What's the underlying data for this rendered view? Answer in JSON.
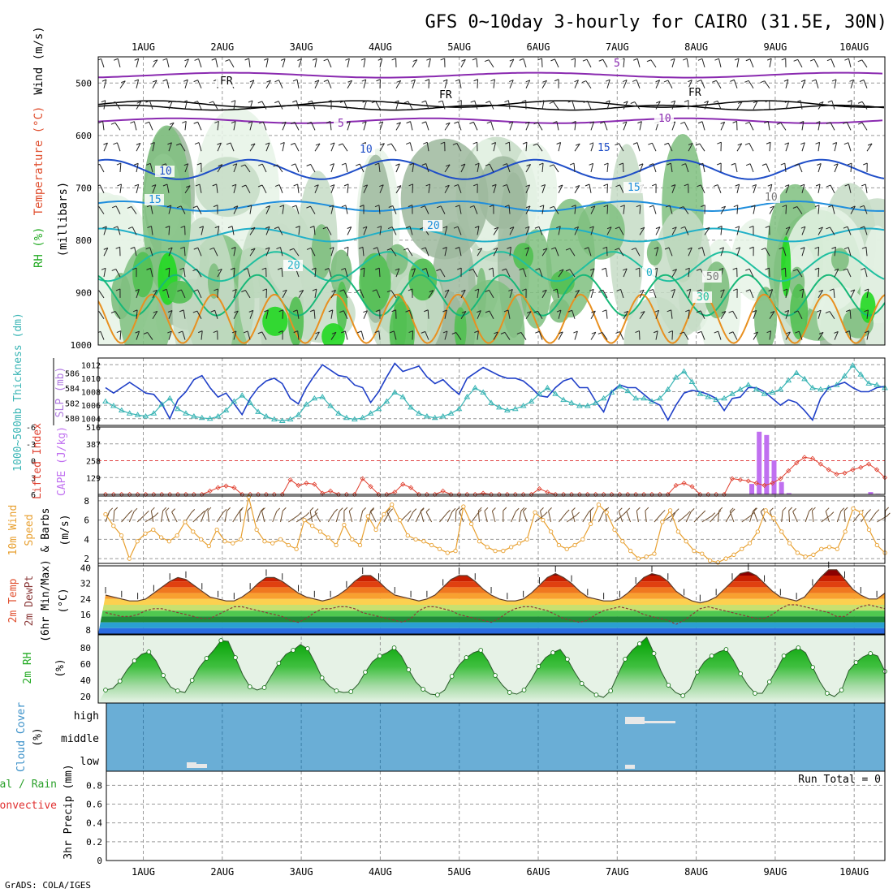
{
  "title": "GFS 0~10day 3-hourly for CAIRO (31.5E, 30N)",
  "credit": "GrADS: COLA/IGES",
  "colors": {
    "thickness": "#3ab5b5",
    "slp": "#2040c8",
    "lifted": "#e04030",
    "cape": "#c070f0",
    "wind": "#e8a030",
    "rh2m": "#22aa22",
    "cloud_bg": "#6aaed6",
    "cloud_blk": "#e8e8e8",
    "temp_ramp": [
      "#8b0000",
      "#c81e00",
      "#e04010",
      "#f07820",
      "#f8a030",
      "#fcd050",
      "#c8e070",
      "#50c850",
      "#208a38",
      "#2aa0d0",
      "#2a6ae0",
      "#6080f0"
    ]
  },
  "chart_data": [
    {
      "type": "contour",
      "panel": "upper-air cross section",
      "x_axis_labels": [
        "1AUG",
        "2AUG",
        "3AUG",
        "4AUG",
        "5AUG",
        "6AUG",
        "7AUG",
        "8AUG",
        "9AUG",
        "10AUG"
      ],
      "ylabel_parts": [
        "RH (%)",
        "Temperature (°C)",
        "Wind (m/s)"
      ],
      "ylabel_unit": "(millibars)",
      "yticks": [
        500,
        600,
        700,
        800,
        900,
        1000
      ],
      "ylim": [
        450,
        1000
      ],
      "contour_labels": [
        "FR",
        "FR",
        "FR",
        "5",
        "5",
        "10",
        "10",
        "10",
        "15",
        "15",
        "15",
        "20",
        "20",
        "0",
        "30",
        "50",
        "10"
      ]
    },
    {
      "type": "line",
      "panel": "thickness and sea level pressure",
      "ylabel_left": "1000~500mb Thickness (dm)",
      "ylabel_right": "SLP (mb)",
      "yticks_left": [
        "586",
        "584",
        "582",
        "580"
      ],
      "yticks_right": [
        "1012",
        "1010",
        "1008",
        "1006",
        "1004"
      ],
      "ylim_left": [
        579,
        588
      ],
      "ylim_right": [
        1003,
        1013
      ],
      "series": [
        {
          "name": "Thickness",
          "values": [
            582.2,
            581.6,
            581,
            580.6,
            580.4,
            580.2,
            580.6,
            581.8,
            582.6,
            581.2,
            580.6,
            580.2,
            580,
            579.9,
            580.2,
            581,
            582.2,
            583,
            582,
            580.8,
            580.2,
            579.8,
            579.6,
            579.8,
            580.4,
            581.8,
            582.6,
            582.8,
            581.6,
            580.6,
            580,
            579.8,
            580,
            580.6,
            581.2,
            582.2,
            583.4,
            582.8,
            581.4,
            580.6,
            580.2,
            580,
            580.2,
            580.6,
            581.2,
            582.8,
            584,
            583.4,
            582,
            581.4,
            581,
            581.2,
            581.6,
            582.2,
            583.2,
            584,
            583.2,
            582.4,
            582,
            581.6,
            581.6,
            582,
            582.6,
            583.4,
            584.2,
            583.6,
            582.6,
            582.6,
            582.2,
            582.6,
            583.8,
            585.4,
            586.2,
            584.8,
            583.2,
            582.8,
            582.4,
            582.6,
            583.2,
            583.8,
            584.4,
            583.8,
            583.2,
            583.4,
            583.8,
            585,
            586,
            585.2,
            584,
            583.8,
            584,
            584.4,
            585.6,
            587,
            585.8,
            584.6,
            584.4,
            584
          ]
        },
        {
          "name": "SLP",
          "values": [
            1008.6,
            1007.8,
            1008.6,
            1009.4,
            1008.6,
            1007.8,
            1007.6,
            1006.2,
            1004.0,
            1006.8,
            1008.0,
            1009.8,
            1010.4,
            1008.6,
            1007.2,
            1007.8,
            1006.2,
            1004.6,
            1007.0,
            1008.6,
            1009.6,
            1010.0,
            1009.2,
            1007.0,
            1006.2,
            1008.6,
            1010.4,
            1012.0,
            1011.2,
            1010.4,
            1010.2,
            1009.0,
            1008.6,
            1006.4,
            1008.0,
            1010.2,
            1012.2,
            1011.0,
            1011.4,
            1011.8,
            1010.2,
            1009.2,
            1009.8,
            1008.6,
            1007.6,
            1010.0,
            1010.8,
            1011.6,
            1011.0,
            1010.4,
            1010.0,
            1010.0,
            1009.6,
            1008.6,
            1007.4,
            1007.2,
            1008.6,
            1009.6,
            1010.0,
            1008.6,
            1008.6,
            1006.6,
            1005.0,
            1008.0,
            1009.0,
            1008.6,
            1008.6,
            1007.6,
            1006.6,
            1006.0,
            1003.8,
            1006.0,
            1007.8,
            1008.2,
            1008.0,
            1007.6,
            1007.0,
            1005.2,
            1007.0,
            1007.2,
            1008.6,
            1008.6,
            1008.0,
            1007.0,
            1006.0,
            1006.8,
            1006.4,
            1005.2,
            1003.8,
            1007.0,
            1008.6,
            1009.0,
            1009.4,
            1008.6,
            1008.0,
            1008.0,
            1008.6,
            1008.8
          ]
        }
      ]
    },
    {
      "type": "bar_line",
      "panel": "stability",
      "ylabel_left": "Lifted Index",
      "ylabel_right": "CAPE (J/kg)",
      "yticks_left": [
        "-6",
        "-3",
        "0",
        "3",
        "6"
      ],
      "yticks_right": [
        "516",
        "387",
        "258",
        "129"
      ],
      "ylim_left": [
        -6,
        6
      ],
      "ylim_right": [
        0,
        516
      ],
      "series": [
        {
          "name": "Lifted Index",
          "values": [
            6,
            6,
            6,
            6,
            6,
            6,
            6,
            6,
            6,
            6,
            6,
            6,
            6,
            5.4,
            4.8,
            4.5,
            4.8,
            6,
            6,
            6,
            6,
            6,
            6,
            3.4,
            4.4,
            4.0,
            4.2,
            5.8,
            5.4,
            6,
            6,
            6,
            3.2,
            4.6,
            6,
            6,
            5.6,
            4.2,
            4.8,
            6,
            6,
            6,
            5.4,
            6,
            6,
            6,
            6,
            5.8,
            6,
            6,
            6,
            6,
            6,
            6,
            5,
            5.6,
            6,
            6,
            6,
            6,
            6,
            6,
            6,
            6,
            6,
            6,
            6,
            6,
            6,
            6,
            6,
            4.4,
            4.0,
            4.6,
            6,
            6,
            6,
            6,
            3.2,
            3.4,
            3.6,
            4.0,
            4.4,
            4.0,
            3.2,
            1.8,
            0.4,
            -0.6,
            -0.4,
            0.6,
            1.6,
            2.4,
            2.2,
            1.6,
            1.2,
            0.6,
            1.6,
            3.0
          ]
        },
        {
          "name": "CAPE",
          "type": "bar",
          "values": [
            0,
            0,
            0,
            0,
            0,
            0,
            0,
            0,
            0,
            0,
            0,
            0,
            0,
            0,
            0,
            0,
            0,
            0,
            0,
            0,
            0,
            0,
            0,
            0,
            0,
            0,
            0,
            0,
            0,
            0,
            0,
            0,
            0,
            0,
            0,
            0,
            0,
            0,
            0,
            0,
            0,
            0,
            0,
            0,
            0,
            0,
            0,
            0,
            0,
            0,
            0,
            0,
            0,
            0,
            0,
            0,
            0,
            0,
            0,
            0,
            0,
            0,
            0,
            0,
            0,
            0,
            0,
            0,
            0,
            0,
            0,
            0,
            0,
            0,
            0,
            0,
            0,
            0,
            0,
            0,
            0,
            0,
            0,
            0,
            0,
            0,
            0,
            80,
            480,
            455,
            260,
            95,
            10,
            0,
            0,
            0,
            0,
            0,
            0,
            0,
            0,
            0,
            0,
            18,
            5,
            0
          ]
        }
      ]
    },
    {
      "type": "line",
      "panel": "10m wind",
      "ylabel": "10m Wind Speed & Barbs (m/s)",
      "ylabel_parts": [
        "10m Wind",
        "Speed",
        "& Barbs"
      ],
      "ylabel_unit": "(m/s)",
      "yticks": [
        "8",
        "6",
        "4",
        "2"
      ],
      "ylim": [
        1.5,
        8.5
      ],
      "series": [
        {
          "name": "Wind Speed",
          "values": [
            6.6,
            5.4,
            4.4,
            2.0,
            3.8,
            4.6,
            5.0,
            4.2,
            3.8,
            4.4,
            5.8,
            4.8,
            4.0,
            3.3,
            5.0,
            3.8,
            3.6,
            4.0,
            8.4,
            5.0,
            3.8,
            3.6,
            4.0,
            3.4,
            3.0,
            6.0,
            5.4,
            4.8,
            4.2,
            3.4,
            5.5,
            4.0,
            3.4,
            6.4,
            5.0,
            6.6,
            7.6,
            6.0,
            4.4,
            4.0,
            3.8,
            3.4,
            3.0,
            2.6,
            2.8,
            7.4,
            5.6,
            3.8,
            3.2,
            2.8,
            2.8,
            3.2,
            3.6,
            4.0,
            6.8,
            6.0,
            4.8,
            3.4,
            3.0,
            3.4,
            4.0,
            5.6,
            7.6,
            6.8,
            5.0,
            3.8,
            2.8,
            2.0,
            2.2,
            2.5,
            5.8,
            7.0,
            4.8,
            3.8,
            2.8,
            2.5,
            1.8,
            1.6,
            2.0,
            2.4,
            3.0,
            3.6,
            4.8,
            7.0,
            6.2,
            4.8,
            3.6,
            2.6,
            2.2,
            2.4,
            3.0,
            3.2,
            3.0,
            4.8,
            7.2,
            6.8,
            5.0,
            3.4,
            2.6
          ]
        }
      ]
    },
    {
      "type": "area",
      "panel": "2m temperature",
      "ylabel_parts": [
        "2m Temp",
        "2m DewPt",
        "(6hr Min/Max)"
      ],
      "ylabel_unit": "(°C)",
      "yticks": [
        "40",
        "32",
        "24",
        "16",
        "8"
      ],
      "ylim": [
        6,
        41
      ],
      "series": [
        {
          "name": "2m Temp",
          "values": [
            26,
            25,
            24,
            23,
            23,
            24,
            27,
            30,
            33,
            35,
            34,
            31,
            28,
            25,
            24,
            23,
            23,
            25,
            28,
            32,
            35,
            35,
            33,
            30,
            27,
            25,
            24,
            23,
            24,
            26,
            29,
            33,
            36,
            36,
            33,
            29,
            26,
            25,
            24,
            23,
            24,
            26,
            30,
            34,
            36,
            36,
            33,
            29,
            26,
            24,
            23,
            23,
            24,
            27,
            31,
            35,
            37,
            35,
            32,
            28,
            25,
            24,
            23,
            23,
            24,
            27,
            31,
            35,
            37,
            36,
            33,
            28,
            25,
            23,
            22,
            23,
            25,
            29,
            33,
            37,
            38,
            36,
            32,
            28,
            25,
            24,
            23,
            25,
            30,
            35,
            39,
            39,
            34,
            29,
            26,
            24,
            24,
            27
          ]
        },
        {
          "name": "2m DewPt",
          "values": [
            17,
            16,
            15,
            15,
            16,
            18,
            19,
            19,
            18,
            17,
            16,
            15,
            14,
            14,
            16,
            18,
            20,
            20,
            19,
            18,
            17,
            16,
            15,
            13,
            12,
            14,
            17,
            19,
            19,
            20,
            20,
            19,
            17,
            16,
            15,
            14,
            13,
            12,
            14,
            18,
            20,
            20,
            19,
            18,
            16,
            15,
            14,
            13,
            12,
            14,
            17,
            19,
            20,
            20,
            19,
            18,
            16,
            14,
            13,
            12,
            13,
            16,
            18,
            19,
            20,
            19,
            18,
            16,
            15,
            14,
            13,
            11,
            13,
            16,
            19,
            20,
            19,
            18,
            17,
            16,
            15,
            14,
            14,
            16,
            19,
            21,
            21,
            20,
            19,
            18,
            17,
            15,
            15,
            18,
            20,
            21,
            20,
            19
          ]
        }
      ]
    },
    {
      "type": "area",
      "panel": "2m relative humidity",
      "ylabel_parts": [
        "2m RH"
      ],
      "ylabel_unit": "(%)",
      "yticks": [
        "80",
        "60",
        "40",
        "20"
      ],
      "ylim": [
        12,
        96
      ],
      "series": [
        {
          "name": "2m RH",
          "values": [
            28,
            30,
            39,
            53,
            64,
            72,
            75,
            64,
            46,
            32,
            27,
            25,
            40,
            56,
            67,
            77,
            89,
            88,
            68,
            47,
            32,
            28,
            31,
            46,
            61,
            72,
            77,
            84,
            79,
            62,
            43,
            33,
            27,
            25,
            26,
            35,
            50,
            63,
            70,
            74,
            80,
            70,
            53,
            38,
            29,
            23,
            22,
            28,
            45,
            59,
            68,
            74,
            77,
            64,
            46,
            34,
            25,
            23,
            28,
            41,
            57,
            68,
            74,
            78,
            66,
            50,
            36,
            28,
            22,
            19,
            27,
            47,
            66,
            77,
            85,
            93,
            73,
            51,
            34,
            25,
            21,
            29,
            50,
            63,
            70,
            75,
            78,
            65,
            48,
            34,
            24,
            24,
            38,
            53,
            70,
            76,
            80,
            74,
            56,
            38,
            24,
            20,
            28,
            52,
            62,
            69,
            73,
            70,
            51
          ]
        }
      ]
    },
    {
      "type": "bar",
      "panel": "cloud cover",
      "ylabel_parts": [
        "Cloud Cover",
        "(%)"
      ],
      "yticks": [
        "high",
        "middle",
        "low"
      ]
    },
    {
      "type": "bar",
      "panel": "precipitation",
      "ylabel_parts": [
        "3hr Precip (mm)"
      ],
      "legend": [
        "Total / Rain",
        "Convective"
      ],
      "annotation": "Run Total = 0",
      "yticks": [
        "0.8",
        "0.6",
        "0.4",
        "0.2",
        "0"
      ],
      "ylim": [
        0,
        0.95
      ],
      "values": []
    }
  ]
}
